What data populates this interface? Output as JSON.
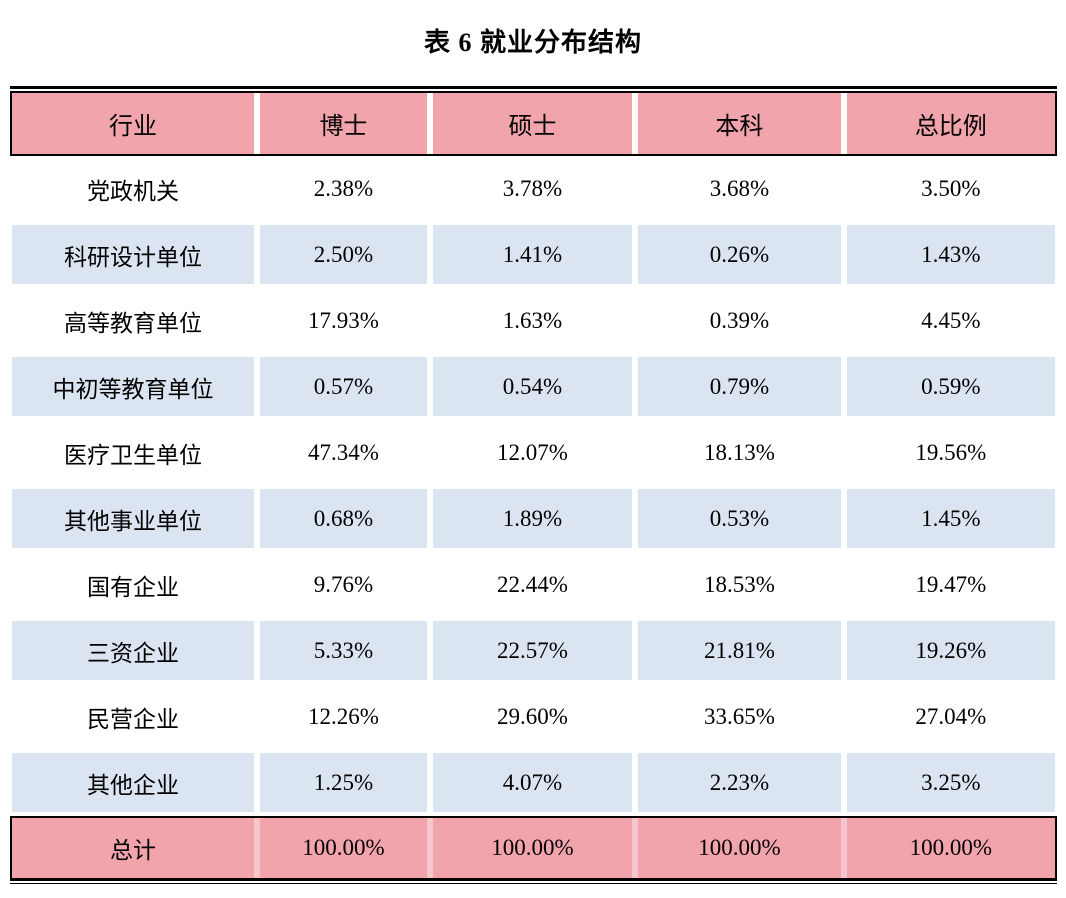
{
  "title": "表 6 就业分布结构",
  "colors": {
    "header_pink": "#f2a4ad",
    "row_blue": "#dbe5f1",
    "total_pink": "#f2a4ad",
    "rule_black": "#000000"
  },
  "table": {
    "columns": [
      "行业",
      "博士",
      "硕士",
      "本科",
      "总比例"
    ],
    "rows": [
      [
        "党政机关",
        "2.38%",
        "3.78%",
        "3.68%",
        "3.50%"
      ],
      [
        "科研设计单位",
        "2.50%",
        "1.41%",
        "0.26%",
        "1.43%"
      ],
      [
        "高等教育单位",
        "17.93%",
        "1.63%",
        "0.39%",
        "4.45%"
      ],
      [
        "中初等教育单位",
        "0.57%",
        "0.54%",
        "0.79%",
        "0.59%"
      ],
      [
        "医疗卫生单位",
        "47.34%",
        "12.07%",
        "18.13%",
        "19.56%"
      ],
      [
        "其他事业单位",
        "0.68%",
        "1.89%",
        "0.53%",
        "1.45%"
      ],
      [
        "国有企业",
        "9.76%",
        "22.44%",
        "18.53%",
        "19.47%"
      ],
      [
        "三资企业",
        "5.33%",
        "22.57%",
        "21.81%",
        "19.26%"
      ],
      [
        "民营企业",
        "12.26%",
        "29.60%",
        "33.65%",
        "27.04%"
      ],
      [
        "其他企业",
        "1.25%",
        "4.07%",
        "2.23%",
        "3.25%"
      ]
    ],
    "total": [
      "总计",
      "100.00%",
      "100.00%",
      "100.00%",
      "100.00%"
    ]
  }
}
